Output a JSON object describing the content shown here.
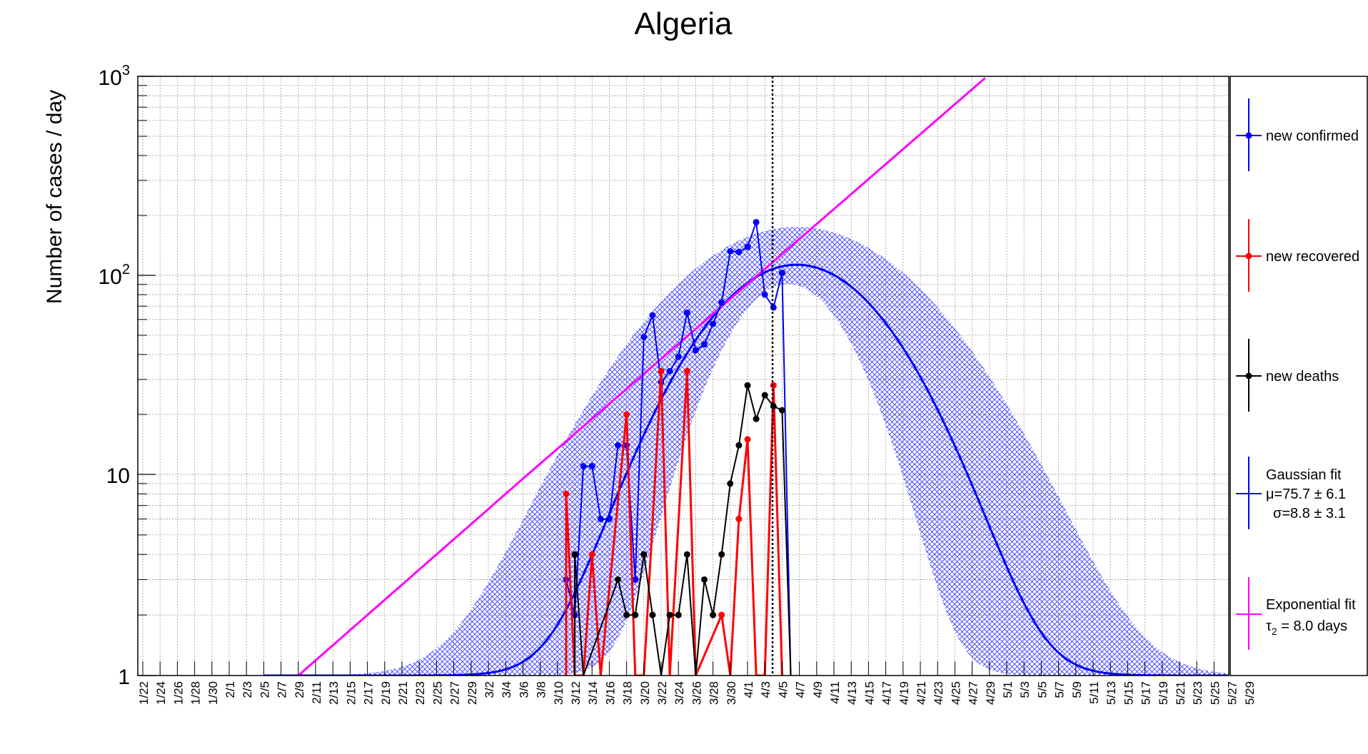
{
  "chart_data": {
    "type": "line",
    "title": "Algeria",
    "ylabel": "Number of cases / day",
    "xlabel": "",
    "y_scale": "log",
    "ylim": [
      1,
      1000
    ],
    "y_ticks": [
      {
        "value": 1,
        "label": "1"
      },
      {
        "value": 10,
        "label": "10"
      },
      {
        "value": 100,
        "label": "10",
        "sup": "2"
      },
      {
        "value": 1000,
        "label": "10",
        "sup": "3"
      }
    ],
    "x_ticks": [
      "1/22",
      "1/24",
      "1/26",
      "1/28",
      "1/30",
      "2/1",
      "2/3",
      "2/5",
      "2/7",
      "2/9",
      "2/11",
      "2/13",
      "2/15",
      "2/17",
      "2/19",
      "2/21",
      "2/23",
      "2/25",
      "2/27",
      "2/29",
      "3/2",
      "3/4",
      "3/6",
      "3/8",
      "3/10",
      "3/12",
      "3/14",
      "3/16",
      "3/18",
      "3/20",
      "3/22",
      "3/24",
      "3/26",
      "3/28",
      "3/30",
      "4/1",
      "4/3",
      "4/5",
      "4/7",
      "4/9",
      "4/11",
      "4/13",
      "4/15",
      "4/17",
      "4/19",
      "4/21",
      "4/23",
      "4/25",
      "4/27",
      "4/29",
      "5/1",
      "5/3",
      "5/5",
      "5/7",
      "5/9",
      "5/11",
      "5/13",
      "5/15",
      "5/17",
      "5/19",
      "5/21",
      "5/23",
      "5/25",
      "5/27",
      "5/29"
    ],
    "grid": true,
    "legend_position": "right",
    "today_marker": "4/6",
    "series": [
      {
        "name": "new confirmed",
        "color": "#0000ff",
        "dates": [
          "3/11",
          "3/12",
          "3/13",
          "3/14",
          "3/15",
          "3/16",
          "3/17",
          "3/18",
          "3/19",
          "3/20",
          "3/21",
          "3/22",
          "3/23",
          "3/24",
          "3/25",
          "3/26",
          "3/27",
          "3/28",
          "3/29",
          "3/30",
          "3/31",
          "4/1",
          "4/2",
          "4/3",
          "4/4",
          "4/5",
          "4/6"
        ],
        "values": [
          3,
          2,
          11,
          11,
          6,
          6,
          14,
          14,
          3,
          49,
          63,
          29,
          33,
          39,
          65,
          42,
          45,
          57,
          73,
          132,
          131,
          139,
          185,
          80,
          69,
          103,
          1
        ]
      },
      {
        "name": "new recovered",
        "color": "#ff0000",
        "dates": [
          "3/11",
          "3/12",
          "3/13",
          "3/14",
          "3/15",
          "3/18",
          "3/19",
          "3/20",
          "3/22",
          "3/23",
          "3/25",
          "3/26",
          "3/29",
          "3/30",
          "3/31",
          "4/1",
          "4/2",
          "4/3",
          "4/4",
          "4/5"
        ],
        "values": [
          8,
          1,
          1,
          4,
          1,
          20,
          1,
          1,
          33,
          1,
          33,
          1,
          2,
          1,
          6,
          15,
          1,
          1,
          28,
          1
        ]
      },
      {
        "name": "new deaths",
        "color": "#000000",
        "dates": [
          "3/12",
          "3/13",
          "3/17",
          "3/18",
          "3/19",
          "3/20",
          "3/21",
          "3/22",
          "3/23",
          "3/24",
          "3/25",
          "3/26",
          "3/27",
          "3/28",
          "3/29",
          "3/30",
          "3/31",
          "4/1",
          "4/2",
          "4/3",
          "4/4",
          "4/5",
          "4/6"
        ],
        "values": [
          4,
          1,
          3,
          2,
          2,
          4,
          2,
          1,
          2,
          2,
          4,
          1,
          3,
          2,
          4,
          9,
          14,
          28,
          19,
          25,
          22,
          21,
          1
        ]
      }
    ],
    "fits": [
      {
        "name": "Gaussian fit",
        "label_lines": [
          "Gaussian fit",
          "μ=75.7 ± 6.1",
          "σ=8.8 ± 3.1"
        ],
        "color": "#0000ff",
        "band_color": "#4d4dff",
        "baseline": 1,
        "peak": 113,
        "mu": 75.7,
        "sigma": 8.8
      },
      {
        "name": "Exponential fit",
        "label_lines": [
          "Exponential fit",
          "τ",
          "2",
          " = 8.0 days"
        ],
        "color": "#ff00ff",
        "doubling_days": 8.0,
        "value_at_2_9": 1
      }
    ]
  }
}
